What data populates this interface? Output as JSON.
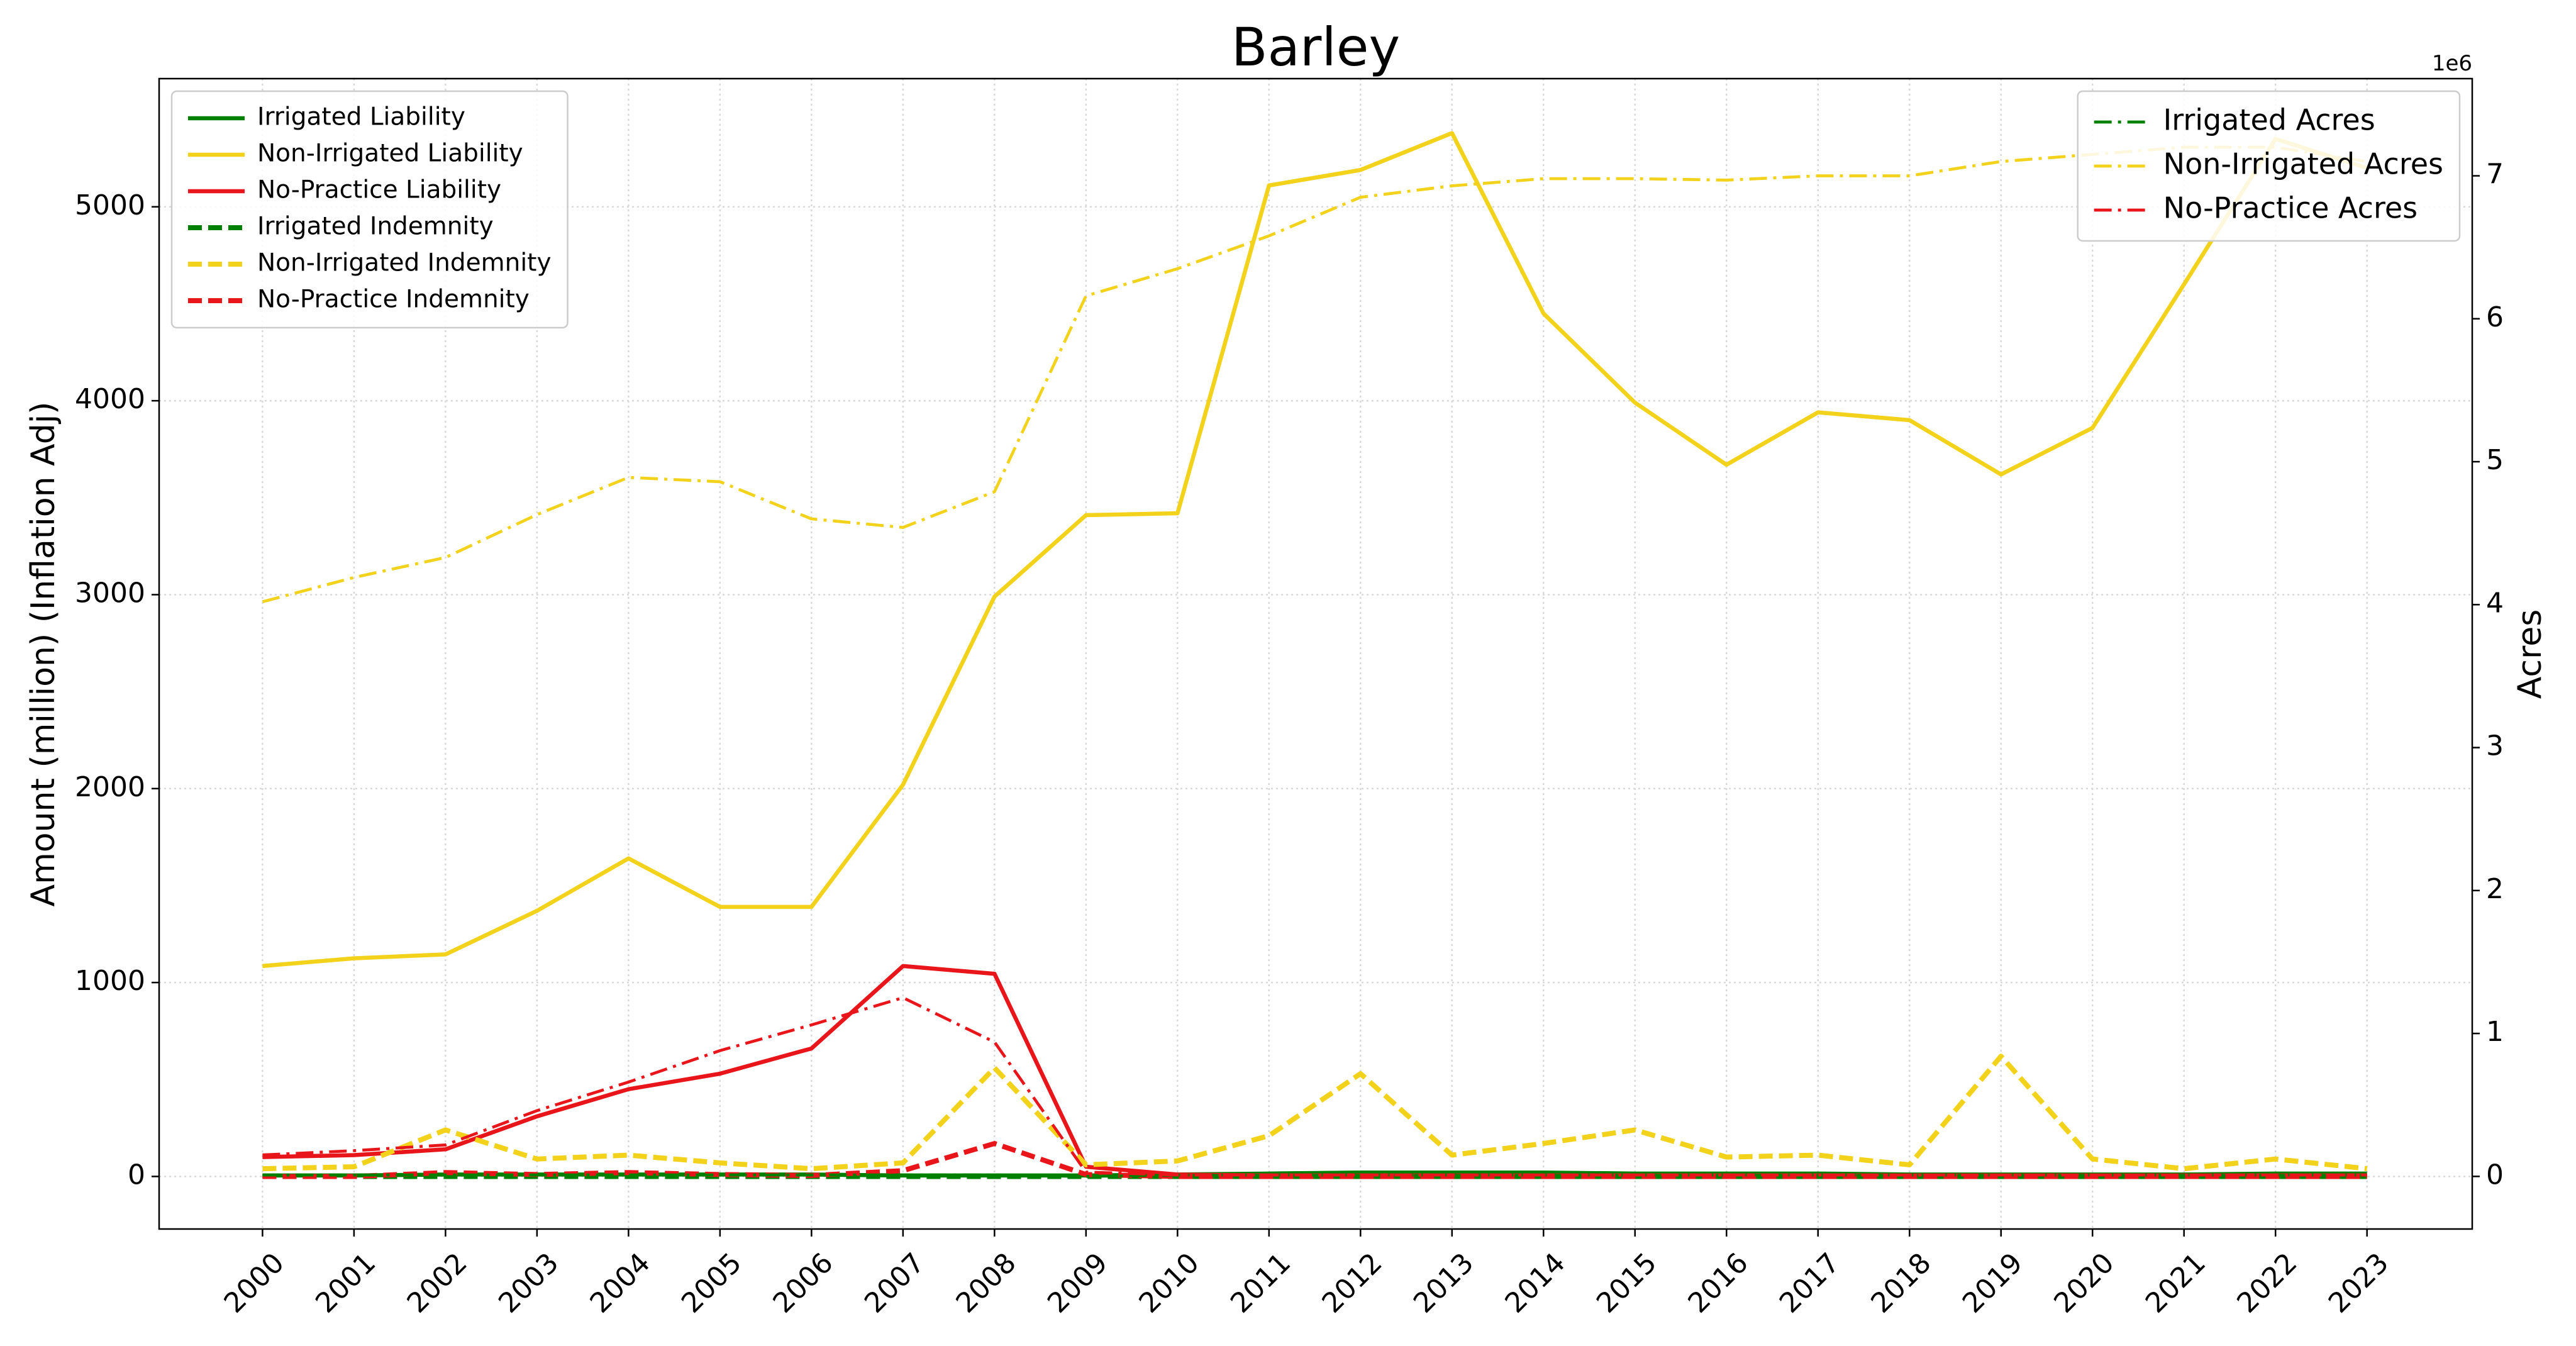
{
  "chart_data": {
    "type": "line",
    "title": "Barley",
    "y_label": "Amount (million) (Inflation Adj)",
    "y2_label": "Acres",
    "y2_offset_label": "1e6",
    "x": [
      2000,
      2001,
      2002,
      2003,
      2004,
      2005,
      2006,
      2007,
      2008,
      2009,
      2010,
      2011,
      2012,
      2013,
      2014,
      2015,
      2016,
      2017,
      2018,
      2019,
      2020,
      2021,
      2022,
      2023
    ],
    "xlim": [
      1998.87,
      2024.15
    ],
    "xticks": [
      2000,
      2001,
      2002,
      2003,
      2004,
      2005,
      2006,
      2007,
      2008,
      2009,
      2010,
      2011,
      2012,
      2013,
      2014,
      2015,
      2016,
      2017,
      2018,
      2019,
      2020,
      2021,
      2022,
      2023
    ],
    "ylim": [
      -271,
      5661
    ],
    "yticks": [
      0,
      1000,
      2000,
      3000,
      4000,
      5000
    ],
    "y2lim": [
      -0.368,
      7.68
    ],
    "y2ticks": [
      0,
      1,
      2,
      3,
      4,
      5,
      6,
      7
    ],
    "grid": true,
    "legend_loc": "upper left",
    "legend2_loc": "upper right",
    "series": [
      {
        "name": "Irrigated Liability",
        "color": "#008000",
        "style": "solid",
        "axis": "y",
        "values": [
          5,
          5,
          10,
          10,
          10,
          10,
          10,
          5,
          5,
          5,
          10,
          15,
          20,
          20,
          20,
          15,
          15,
          15,
          10,
          10,
          10,
          10,
          15,
          15
        ]
      },
      {
        "name": "Non-Irrigated Liability",
        "color": "#f2d21b",
        "style": "solid",
        "axis": "y",
        "values": [
          1085,
          1125,
          1145,
          1370,
          1640,
          1390,
          1390,
          2020,
          2990,
          3410,
          3420,
          5110,
          5190,
          5380,
          4450,
          3990,
          3670,
          3940,
          3900,
          3620,
          3860,
          4600,
          5350,
          5200
        ]
      },
      {
        "name": "No-Practice Liability",
        "color": "#e8161b",
        "style": "solid",
        "axis": "y",
        "values": [
          100,
          110,
          140,
          310,
          450,
          530,
          660,
          1085,
          1045,
          50,
          10,
          5,
          5,
          5,
          5,
          5,
          5,
          5,
          5,
          5,
          5,
          5,
          5,
          5
        ]
      },
      {
        "name": "Irrigated Indemnity",
        "color": "#008000",
        "style": "dashed",
        "axis": "y",
        "values": [
          0,
          0,
          0,
          0,
          0,
          0,
          0,
          0,
          0,
          0,
          0,
          0,
          0,
          0,
          0,
          0,
          0,
          0,
          0,
          0,
          0,
          0,
          0,
          0
        ]
      },
      {
        "name": "Non-Irrigated Indemnity",
        "color": "#f2d21b",
        "style": "dashed",
        "axis": "y",
        "values": [
          40,
          50,
          240,
          90,
          110,
          70,
          40,
          70,
          560,
          60,
          80,
          210,
          530,
          110,
          170,
          240,
          100,
          110,
          60,
          620,
          90,
          40,
          90,
          40
        ]
      },
      {
        "name": "No-Practice Indemnity",
        "color": "#e8161b",
        "style": "dashed",
        "axis": "y",
        "values": [
          0,
          0,
          20,
          10,
          20,
          10,
          5,
          30,
          170,
          10,
          0,
          0,
          0,
          0,
          0,
          0,
          0,
          0,
          0,
          0,
          0,
          0,
          0,
          0
        ]
      },
      {
        "name": "Irrigated Acres",
        "color": "#008000",
        "style": "dashdot",
        "axis": "y2",
        "values": [
          0.01,
          0.01,
          0.01,
          0.01,
          0.01,
          0.01,
          0.01,
          0.01,
          0.01,
          0.0,
          0.01,
          0.01,
          0.01,
          0.01,
          0.01,
          0.01,
          0.01,
          0.01,
          0.01,
          0.01,
          0.01,
          0.01,
          0.01,
          0.01
        ]
      },
      {
        "name": "Non-Irrigated Acres",
        "color": "#f2d21b",
        "style": "dashdot",
        "axis": "y2",
        "values": [
          4.02,
          4.19,
          4.33,
          4.63,
          4.89,
          4.86,
          4.6,
          4.54,
          4.79,
          6.16,
          6.35,
          6.58,
          6.85,
          6.93,
          6.98,
          6.98,
          6.97,
          7.0,
          7.0,
          7.1,
          7.15,
          7.2,
          7.2,
          7.1
        ]
      },
      {
        "name": "No-Practice Acres",
        "color": "#e8161b",
        "style": "dashdot",
        "axis": "y2",
        "values": [
          0.15,
          0.18,
          0.22,
          0.46,
          0.66,
          0.88,
          1.06,
          1.25,
          0.94,
          0.03,
          0.01,
          0.01,
          0.01,
          0.01,
          0.01,
          0.01,
          0.01,
          0.01,
          0.01,
          0.01,
          0.01,
          0.01,
          0.01,
          0.01
        ]
      }
    ]
  }
}
